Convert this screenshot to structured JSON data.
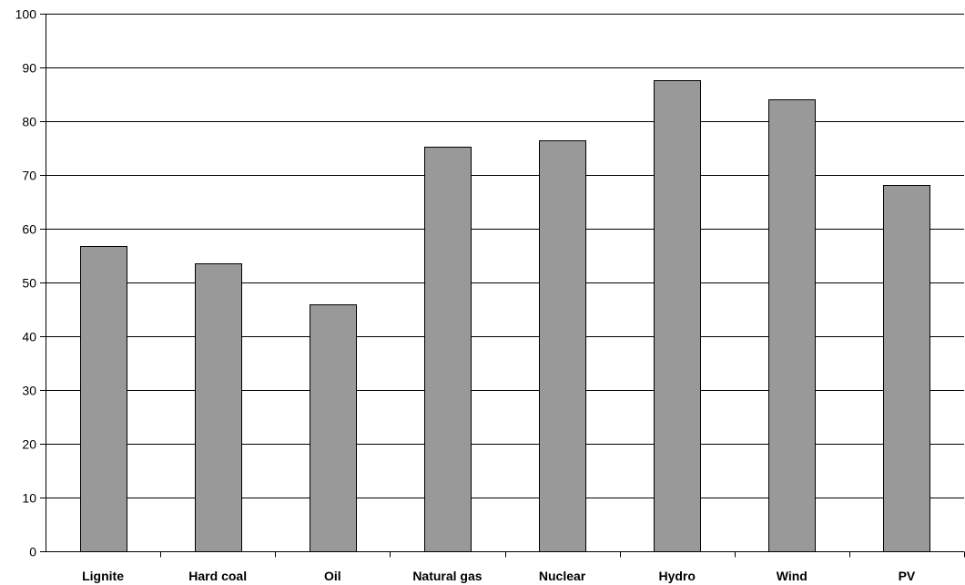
{
  "chart_data": {
    "type": "bar",
    "title": "",
    "xlabel": "",
    "ylabel": "",
    "categories": [
      "Lignite",
      "Hard coal",
      "Oil",
      "Natural gas",
      "Nuclear",
      "Hydro",
      "Wind",
      "PV"
    ],
    "values": [
      56.7,
      53.6,
      46.0,
      75.3,
      76.4,
      87.6,
      84.0,
      68.1
    ],
    "ylim": [
      0,
      100
    ],
    "yticks": [
      0,
      10,
      20,
      30,
      40,
      50,
      60,
      70,
      80,
      90,
      100
    ],
    "grid": true,
    "legend": "none",
    "colors": {
      "bar_fill": "#999999",
      "bar_stroke": "#000000",
      "gridline": "#000000",
      "background": "#ffffff"
    }
  }
}
